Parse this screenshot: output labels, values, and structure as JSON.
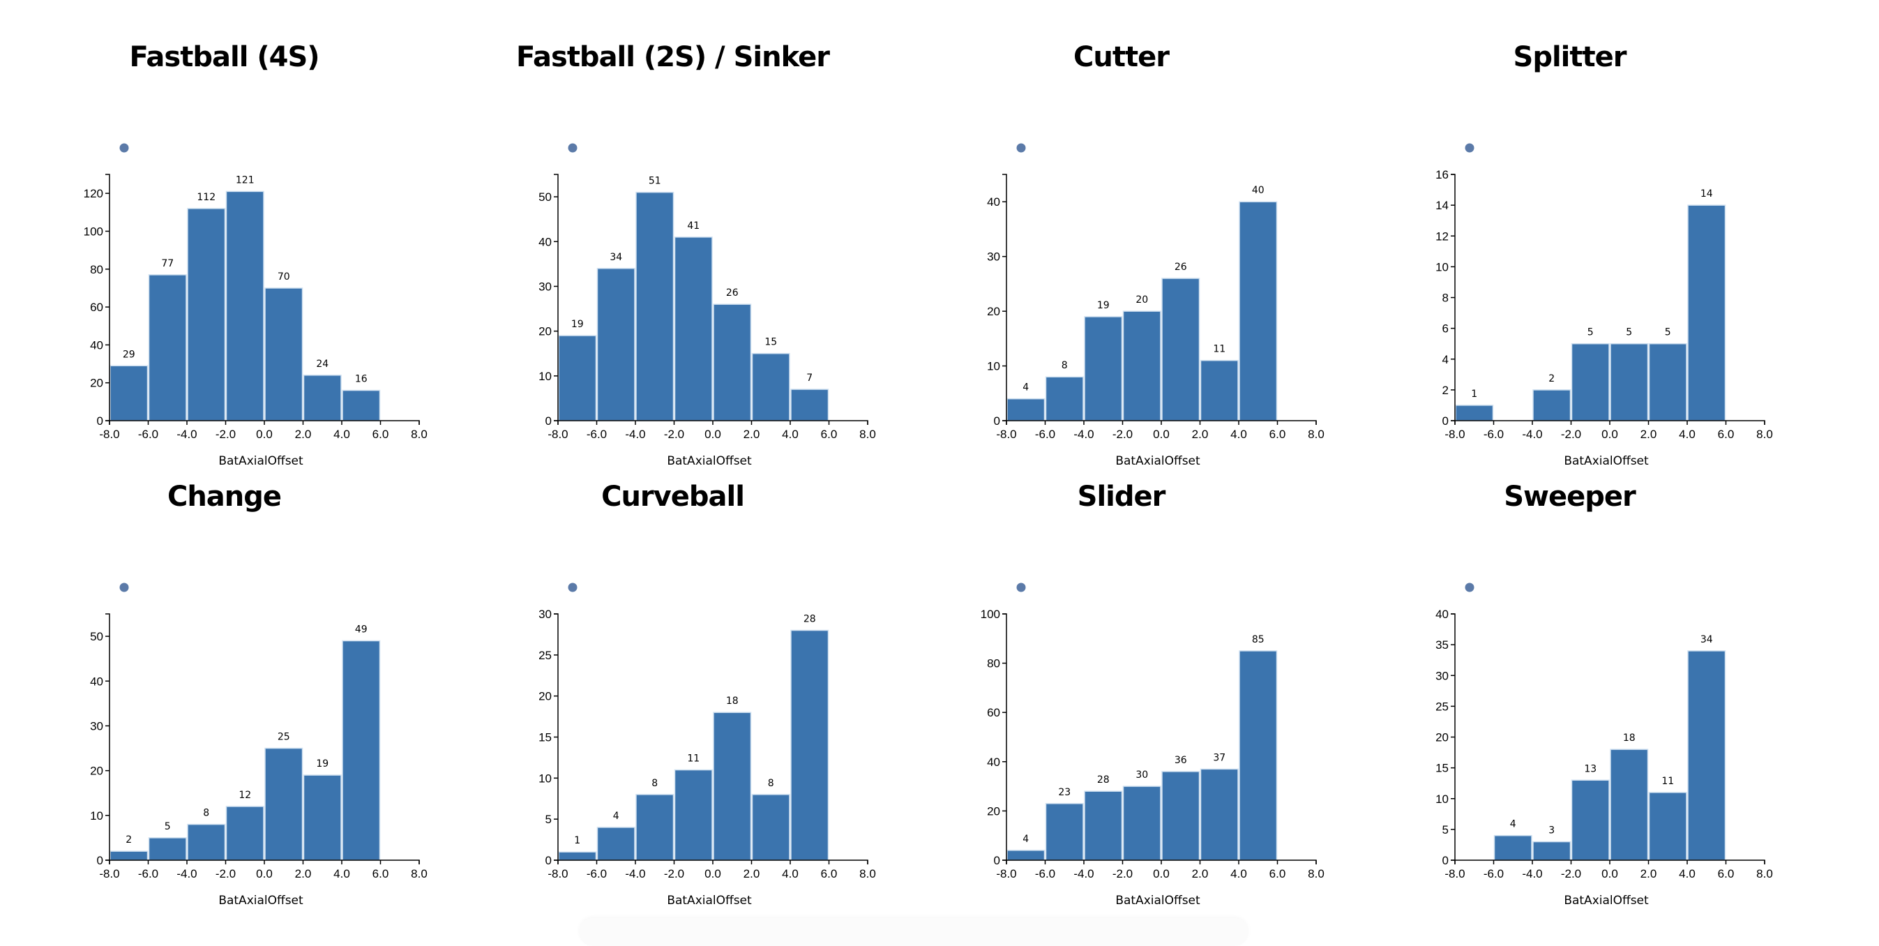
{
  "colors": {
    "bar": "#3b74ae",
    "bar_stroke": "#cfe0f0",
    "legend_dot": "#5b7aa8",
    "axis": "#000000"
  },
  "chart_data": [
    {
      "type": "bar",
      "title": "Fastball (4S)",
      "xlabel": "BatAxialOffset",
      "ylabel": "",
      "bin_edges": [
        -8,
        -6,
        -4,
        -2,
        0,
        2,
        4,
        6
      ],
      "categories": [
        "-8 to -6",
        "-6 to -4",
        "-4 to -2",
        "-2 to 0",
        "0 to 2",
        "2 to 4",
        "4 to 6"
      ],
      "values": [
        29,
        77,
        112,
        121,
        70,
        24,
        16
      ],
      "xlim": [
        -8,
        8
      ],
      "ylim": [
        0,
        130
      ],
      "yticks": [
        0,
        20,
        40,
        60,
        80,
        100,
        120
      ],
      "xticks": [
        "-8.0",
        "-6.0",
        "-4.0",
        "-2.0",
        "0.0",
        "2.0",
        "4.0",
        "6.0",
        "8.0"
      ],
      "grid": false,
      "legend": "dot marker top-left"
    },
    {
      "type": "bar",
      "title": "Fastball (2S) / Sinker",
      "xlabel": "BatAxialOffset",
      "ylabel": "",
      "bin_edges": [
        -8,
        -6,
        -4,
        -2,
        0,
        2,
        4,
        6
      ],
      "categories": [
        "-8 to -6",
        "-6 to -4",
        "-4 to -2",
        "-2 to 0",
        "0 to 2",
        "2 to 4",
        "4 to 6"
      ],
      "values": [
        19,
        34,
        51,
        41,
        26,
        15,
        7
      ],
      "xlim": [
        -8,
        8
      ],
      "ylim": [
        0,
        55
      ],
      "yticks": [
        0,
        10,
        20,
        30,
        40,
        50
      ],
      "xticks": [
        "-8.0",
        "-6.0",
        "-4.0",
        "-2.0",
        "0.0",
        "2.0",
        "4.0",
        "6.0",
        "8.0"
      ],
      "grid": false,
      "legend": "dot marker top-left"
    },
    {
      "type": "bar",
      "title": "Cutter",
      "xlabel": "BatAxialOffset",
      "ylabel": "",
      "bin_edges": [
        -8,
        -6,
        -4,
        -2,
        0,
        2,
        4,
        6
      ],
      "categories": [
        "-8 to -6",
        "-6 to -4",
        "-4 to -2",
        "-2 to 0",
        "0 to 2",
        "2 to 4",
        "4 to 6"
      ],
      "values": [
        4,
        8,
        19,
        20,
        26,
        11,
        40
      ],
      "xlim": [
        -8,
        8
      ],
      "ylim": [
        0,
        45
      ],
      "yticks": [
        0,
        10,
        20,
        30,
        40
      ],
      "xticks": [
        "-8.0",
        "-6.0",
        "-4.0",
        "-2.0",
        "0.0",
        "2.0",
        "4.0",
        "6.0",
        "8.0"
      ],
      "grid": false,
      "legend": "dot marker top-left"
    },
    {
      "type": "bar",
      "title": "Splitter",
      "xlabel": "BatAxialOffset",
      "ylabel": "",
      "bin_edges": [
        -8,
        -6,
        -4,
        -2,
        0,
        2,
        4,
        6
      ],
      "categories": [
        "-8 to -6",
        "-6 to -4",
        "-4 to -2",
        "-2 to 0",
        "0 to 2",
        "2 to 4",
        "4 to 6"
      ],
      "values": [
        1,
        0,
        2,
        5,
        5,
        5,
        14
      ],
      "xlim": [
        -8,
        8
      ],
      "ylim": [
        0,
        16
      ],
      "yticks": [
        0,
        2,
        4,
        6,
        8,
        10,
        12,
        14,
        16
      ],
      "xticks": [
        "-8.0",
        "-6.0",
        "-4.0",
        "-2.0",
        "0.0",
        "2.0",
        "4.0",
        "6.0",
        "8.0"
      ],
      "grid": false,
      "legend": "dot marker top-left"
    },
    {
      "type": "bar",
      "title": "Change",
      "xlabel": "BatAxialOffset",
      "ylabel": "",
      "bin_edges": [
        -8,
        -6,
        -4,
        -2,
        0,
        2,
        4,
        6
      ],
      "categories": [
        "-8 to -6",
        "-6 to -4",
        "-4 to -2",
        "-2 to 0",
        "0 to 2",
        "2 to 4",
        "4 to 6"
      ],
      "values": [
        2,
        5,
        8,
        12,
        25,
        19,
        49
      ],
      "xlim": [
        -8,
        8
      ],
      "ylim": [
        0,
        55
      ],
      "yticks": [
        0,
        10,
        20,
        30,
        40,
        50
      ],
      "xticks": [
        "-8.0",
        "-6.0",
        "-4.0",
        "-2.0",
        "0.0",
        "2.0",
        "4.0",
        "6.0",
        "8.0"
      ],
      "grid": false,
      "legend": "dot marker top-left"
    },
    {
      "type": "bar",
      "title": "Curveball",
      "xlabel": "BatAxialOffset",
      "ylabel": "",
      "bin_edges": [
        -8,
        -6,
        -4,
        -2,
        0,
        2,
        4,
        6
      ],
      "categories": [
        "-8 to -6",
        "-6 to -4",
        "-4 to -2",
        "-2 to 0",
        "0 to 2",
        "2 to 4",
        "4 to 6"
      ],
      "values": [
        1,
        4,
        8,
        11,
        18,
        8,
        28
      ],
      "xlim": [
        -8,
        8
      ],
      "ylim": [
        0,
        30
      ],
      "yticks": [
        0,
        5,
        10,
        15,
        20,
        25,
        30
      ],
      "xticks": [
        "-8.0",
        "-6.0",
        "-4.0",
        "-2.0",
        "0.0",
        "2.0",
        "4.0",
        "6.0",
        "8.0"
      ],
      "grid": false,
      "legend": "dot marker top-left"
    },
    {
      "type": "bar",
      "title": "Slider",
      "xlabel": "BatAxialOffset",
      "ylabel": "",
      "bin_edges": [
        -8,
        -6,
        -4,
        -2,
        0,
        2,
        4,
        6
      ],
      "categories": [
        "-8 to -6",
        "-6 to -4",
        "-4 to -2",
        "-2 to 0",
        "0 to 2",
        "2 to 4",
        "4 to 6"
      ],
      "values": [
        4,
        23,
        28,
        30,
        36,
        37,
        85
      ],
      "xlim": [
        -8,
        8
      ],
      "ylim": [
        0,
        100
      ],
      "yticks": [
        0,
        20,
        40,
        60,
        80,
        100
      ],
      "xticks": [
        "-8.0",
        "-6.0",
        "-4.0",
        "-2.0",
        "0.0",
        "2.0",
        "4.0",
        "6.0",
        "8.0"
      ],
      "grid": false,
      "legend": "dot marker top-left"
    },
    {
      "type": "bar",
      "title": "Sweeper",
      "xlabel": "BatAxialOffset",
      "ylabel": "",
      "bin_edges": [
        -8,
        -6,
        -4,
        -2,
        0,
        2,
        4,
        6
      ],
      "categories": [
        "-8 to -6",
        "-6 to -4",
        "-4 to -2",
        "-2 to 0",
        "0 to 2",
        "2 to 4",
        "4 to 6"
      ],
      "values": [
        0,
        4,
        3,
        13,
        18,
        11,
        34
      ],
      "xlim": [
        -8,
        8
      ],
      "ylim": [
        0,
        40
      ],
      "yticks": [
        0,
        5,
        10,
        15,
        20,
        25,
        30,
        35,
        40
      ],
      "xticks": [
        "-8.0",
        "-6.0",
        "-4.0",
        "-2.0",
        "0.0",
        "2.0",
        "4.0",
        "6.0",
        "8.0"
      ],
      "grid": false,
      "legend": "dot marker top-left"
    }
  ],
  "panels": [
    {
      "title": "Fastball (4S)",
      "xlabel": "BatAxialOffset"
    },
    {
      "title": "Fastball (2S) / Sinker",
      "xlabel": "BatAxialOffset"
    },
    {
      "title": "Cutter",
      "xlabel": "BatAxialOffset"
    },
    {
      "title": "Splitter",
      "xlabel": "BatAxialOffset"
    },
    {
      "title": "Change",
      "xlabel": "BatAxialOffset"
    },
    {
      "title": "Curveball",
      "xlabel": "BatAxialOffset"
    },
    {
      "title": "Slider",
      "xlabel": "BatAxialOffset"
    },
    {
      "title": "Sweeper",
      "xlabel": "BatAxialOffset"
    }
  ]
}
